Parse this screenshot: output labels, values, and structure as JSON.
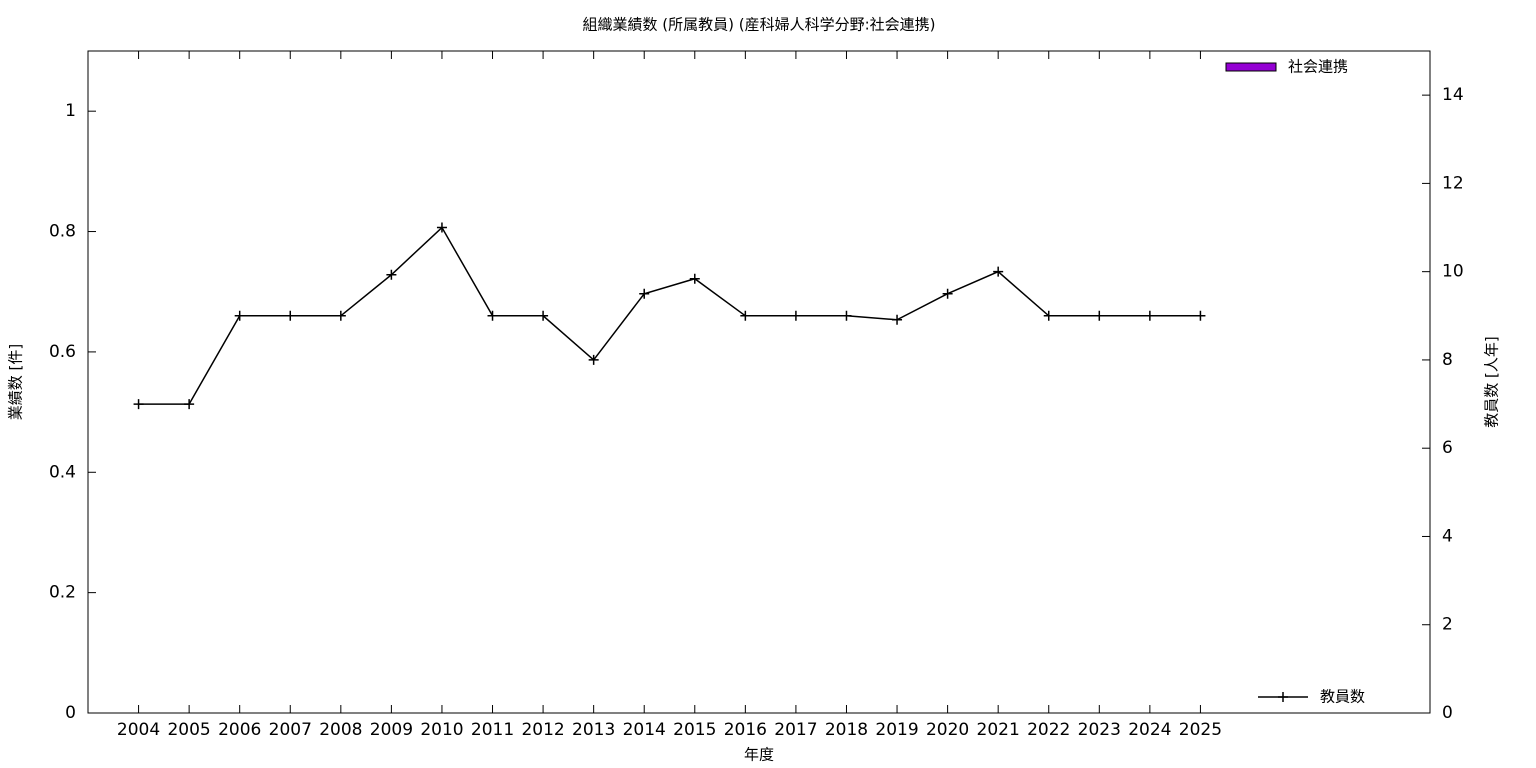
{
  "chart_data": {
    "type": "bar-line",
    "title": "組織業績数 (所属教員) (産科婦人科学分野:社会連携)",
    "xlabel": "年度",
    "ylabel": "業績数 [件]",
    "y2label": "教員数 [人年]",
    "categories": [
      "2004",
      "2005",
      "2006",
      "2007",
      "2008",
      "2009",
      "2010",
      "2011",
      "2012",
      "2013",
      "2014",
      "2015",
      "2016",
      "2017",
      "2018",
      "2019",
      "2020",
      "2021",
      "2022",
      "2023",
      "2024",
      "2025"
    ],
    "ylim": [
      0,
      1.1
    ],
    "yticks": [
      0,
      0.2,
      0.4,
      0.6,
      0.8,
      1
    ],
    "y2lim": [
      0,
      15
    ],
    "y2ticks": [
      0,
      2,
      4,
      6,
      8,
      10,
      12,
      14
    ],
    "grid": false,
    "series": [
      {
        "name": "社会連携",
        "type": "bar",
        "color": "#9400d3",
        "legend": "top right",
        "values": [
          0,
          0,
          0,
          0,
          0,
          0,
          0,
          0,
          0,
          0,
          0,
          0,
          0,
          0,
          0,
          0,
          0,
          0,
          0,
          0,
          0,
          0
        ]
      },
      {
        "name": "教員数",
        "type": "line",
        "axis": "y2",
        "color": "#000000",
        "legend": "bottom right",
        "values": [
          7,
          7,
          9,
          9,
          9,
          9.93,
          11,
          9,
          9,
          8,
          9.5,
          9.84,
          9,
          9,
          9,
          8.91,
          9.5,
          10,
          9,
          9,
          9,
          9
        ]
      }
    ]
  }
}
